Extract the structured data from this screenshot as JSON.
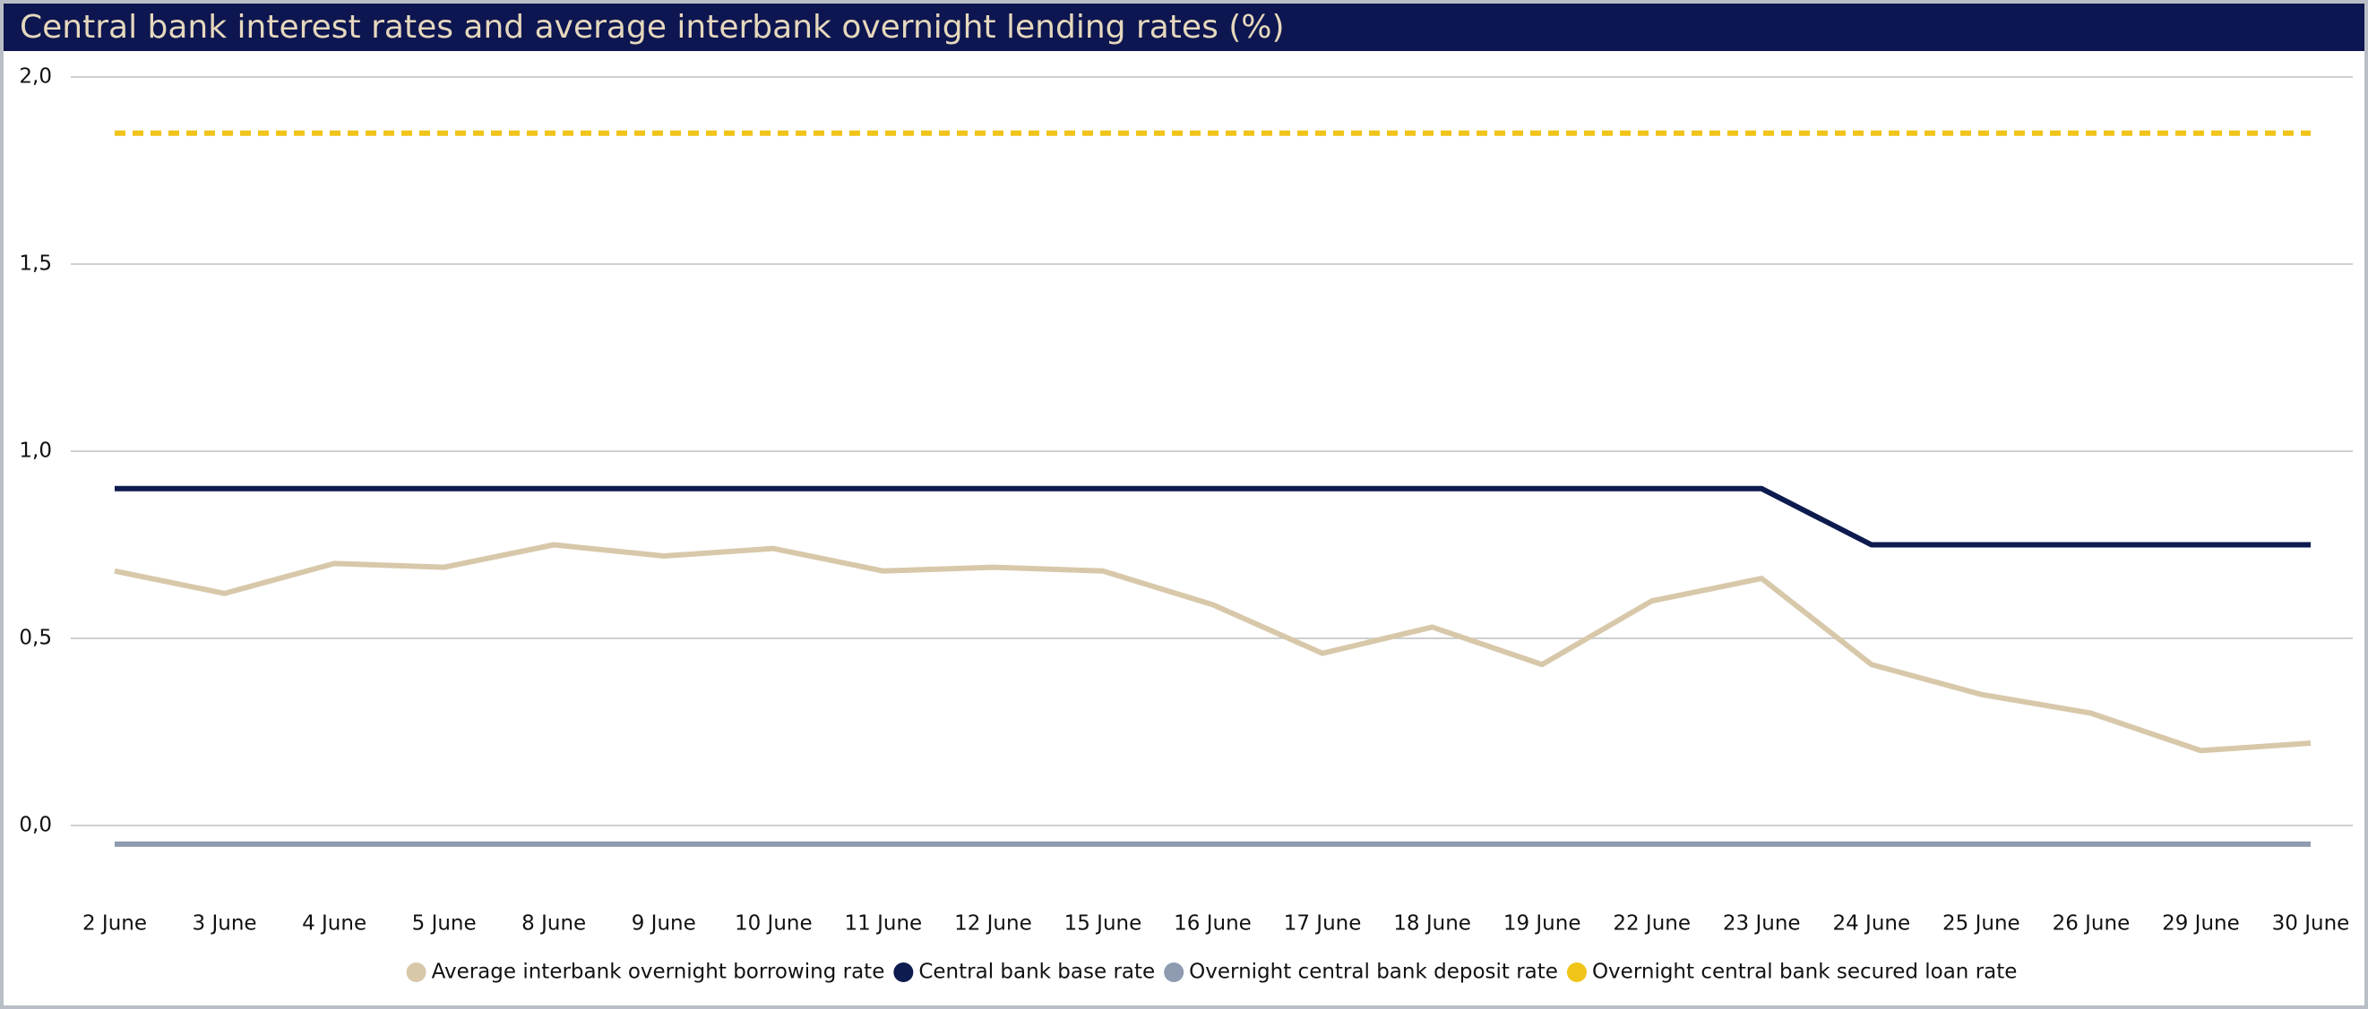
{
  "chart_data": {
    "type": "line",
    "title": "Central bank interest rates and average interbank overnight lending rates (%)",
    "categories": [
      "2 June",
      "3 June",
      "4 June",
      "5 June",
      "8 June",
      "9 June",
      "10 June",
      "11 June",
      "12 June",
      "15 June",
      "16 June",
      "17 June",
      "18 June",
      "19 June",
      "22 June",
      "23 June",
      "24 June",
      "25 June",
      "26 June",
      "29 June",
      "30 June"
    ],
    "series": [
      {
        "name": "Average interbank overnight borrowing rate",
        "color": "#d8c8aa",
        "values": [
          0.68,
          0.62,
          0.7,
          0.69,
          0.75,
          0.72,
          0.74,
          0.68,
          0.69,
          0.68,
          0.59,
          0.46,
          0.53,
          0.43,
          0.6,
          0.66,
          0.43,
          0.35,
          0.3,
          0.2,
          0.22
        ]
      },
      {
        "name": "Central bank base rate",
        "color": "#0d1b4f",
        "values": [
          0.9,
          0.9,
          0.9,
          0.9,
          0.9,
          0.9,
          0.9,
          0.9,
          0.9,
          0.9,
          0.9,
          0.9,
          0.9,
          0.9,
          0.9,
          0.9,
          0.75,
          0.75,
          0.75,
          0.75,
          0.75
        ]
      },
      {
        "name": "Overnight central bank deposit rate",
        "color": "#8e9bb0",
        "values": [
          -0.05,
          -0.05,
          -0.05,
          -0.05,
          -0.05,
          -0.05,
          -0.05,
          -0.05,
          -0.05,
          -0.05,
          -0.05,
          -0.05,
          -0.05,
          -0.05,
          -0.05,
          -0.05,
          -0.05,
          -0.05,
          -0.05,
          -0.05,
          -0.05
        ]
      },
      {
        "name": "Overnight central bank secured loan rate",
        "color": "#f0c419",
        "dashed": true,
        "values": [
          1.85,
          1.85,
          1.85,
          1.85,
          1.85,
          1.85,
          1.85,
          1.85,
          1.85,
          1.85,
          1.85,
          1.85,
          1.85,
          1.85,
          1.85,
          1.85,
          1.85,
          1.85,
          1.85,
          1.85,
          1.85
        ]
      }
    ],
    "ylim": [
      0,
      2
    ],
    "yticks": [
      {
        "value": 0,
        "label": "0,0"
      },
      {
        "value": 0.5,
        "label": "0,5"
      },
      {
        "value": 1,
        "label": "1,0"
      },
      {
        "value": 1.5,
        "label": "1,5"
      },
      {
        "value": 2,
        "label": "2,0"
      }
    ],
    "grid": true,
    "legend": "bottom"
  }
}
